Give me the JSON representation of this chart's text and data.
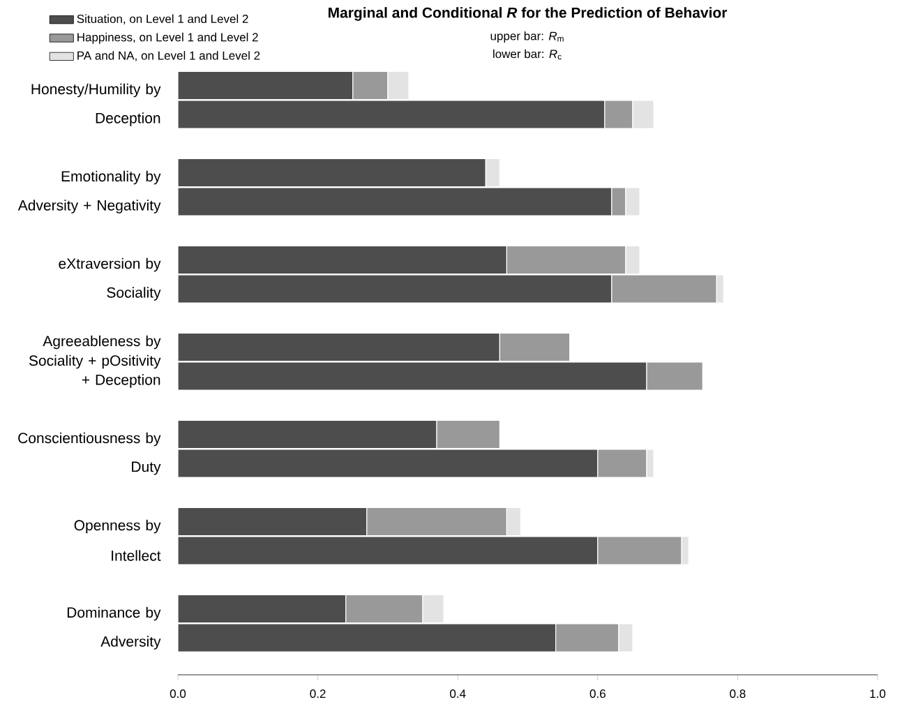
{
  "chart_data": {
    "type": "bar",
    "orientation": "horizontal",
    "stacked": true,
    "title": "Marginal and Conditional *R* for the Prediction of Behavior",
    "subtitle": "upper bar: *R*$_{m}$",
    "annotations": [
      "lower bar: *R*$_{c}$"
    ],
    "categories": [
      "Honesty/Humility by",
      "Deception",
      "Emotionality by",
      "Adversity + Negativity",
      "eXtraversion by",
      "Sociality",
      "Agreeableness by Sociality + pOsitivity",
      "+ Deception",
      "Conscientiousness by",
      "Duty",
      "Openness by",
      "Intellect",
      "Dominance by",
      "Adversity"
    ],
    "series": [
      {
        "name": "Situation, on Level 1 and Level 2",
        "color": "#4d4d4d",
        "values": [
          0.25,
          0.61,
          0.44,
          0.62,
          0.47,
          0.62,
          0.46,
          0.67,
          0.37,
          0.6,
          0.27,
          0.6,
          0.24,
          0.54
        ]
      },
      {
        "name": "Happiness, on Level 1 and Level 2",
        "color": "#999999",
        "values": [
          0.05,
          0.04,
          null,
          0.02,
          0.17,
          0.15,
          0.1,
          0.08,
          0.09,
          0.07,
          0.2,
          0.12,
          0.11,
          0.09
        ]
      },
      {
        "name": "PA and NA, on Level 1 and Level 2",
        "color": "#e3e3e3",
        "values": [
          0.03,
          0.03,
          0.02,
          0.02,
          0.02,
          0.01,
          null,
          null,
          null,
          0.01,
          0.02,
          0.01,
          0.03,
          0.02
        ]
      }
    ],
    "xlim": [
      0,
      1
    ],
    "xticks": [
      {
        "value": 0,
        "label": "0.0"
      },
      {
        "value": 0.2,
        "label": "0.2"
      },
      {
        "value": 0.4,
        "label": "0.4"
      },
      {
        "value": 0.6,
        "label": "0.6"
      },
      {
        "value": 0.8,
        "label": "0.8"
      },
      {
        "value": 1,
        "label": "1.0"
      }
    ],
    "legend": "top left",
    "grid": false
  }
}
